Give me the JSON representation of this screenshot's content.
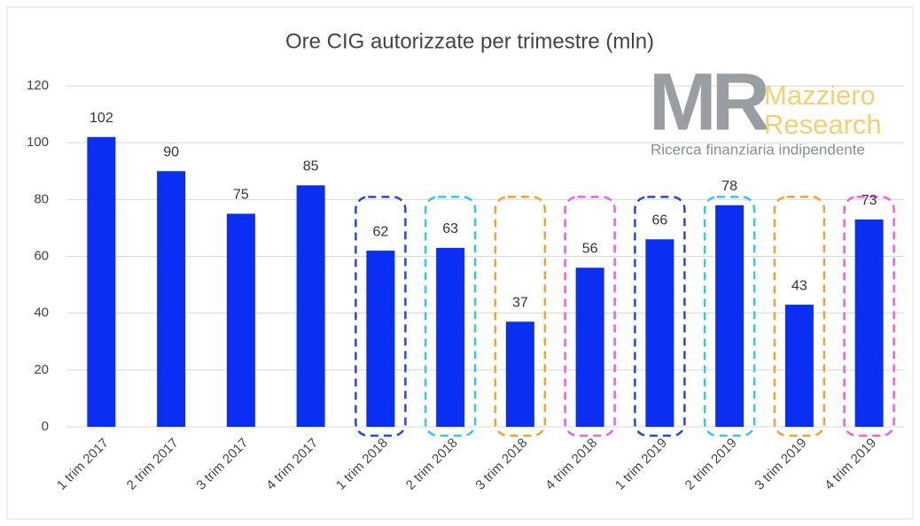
{
  "chart_data": {
    "type": "bar",
    "title": "Ore CIG autorizzate per trimestre (mln)",
    "categories": [
      "1 trim 2017",
      "2 trim 2017",
      "3 trim 2017",
      "4 trim 2017",
      "1 trim 2018",
      "2 trim 2018",
      "3 trim 2018",
      "4 trim 2018",
      "1 trim 2019",
      "2 trim 2019",
      "3 trim 2019",
      "4 trim 2019"
    ],
    "values": [
      102,
      90,
      75,
      85,
      62,
      63,
      37,
      56,
      66,
      78,
      43,
      73
    ],
    "color": "#0a2ff2",
    "highlight_colors": [
      null,
      null,
      null,
      null,
      "#2a45e0",
      "#35c6ea",
      "#f5a033",
      "#ee5fe6",
      "#2a45e0",
      "#35c6ea",
      "#f5a033",
      "#ee5fe6"
    ],
    "ylim": [
      0,
      120
    ],
    "yticks": [
      0,
      20,
      40,
      60,
      80,
      100,
      120
    ],
    "grid": true
  },
  "logo": {
    "mark": "MR",
    "name_line1": "Mazziero",
    "name_line2": "Research",
    "tagline": "Ricerca finanziaria indipendente"
  }
}
